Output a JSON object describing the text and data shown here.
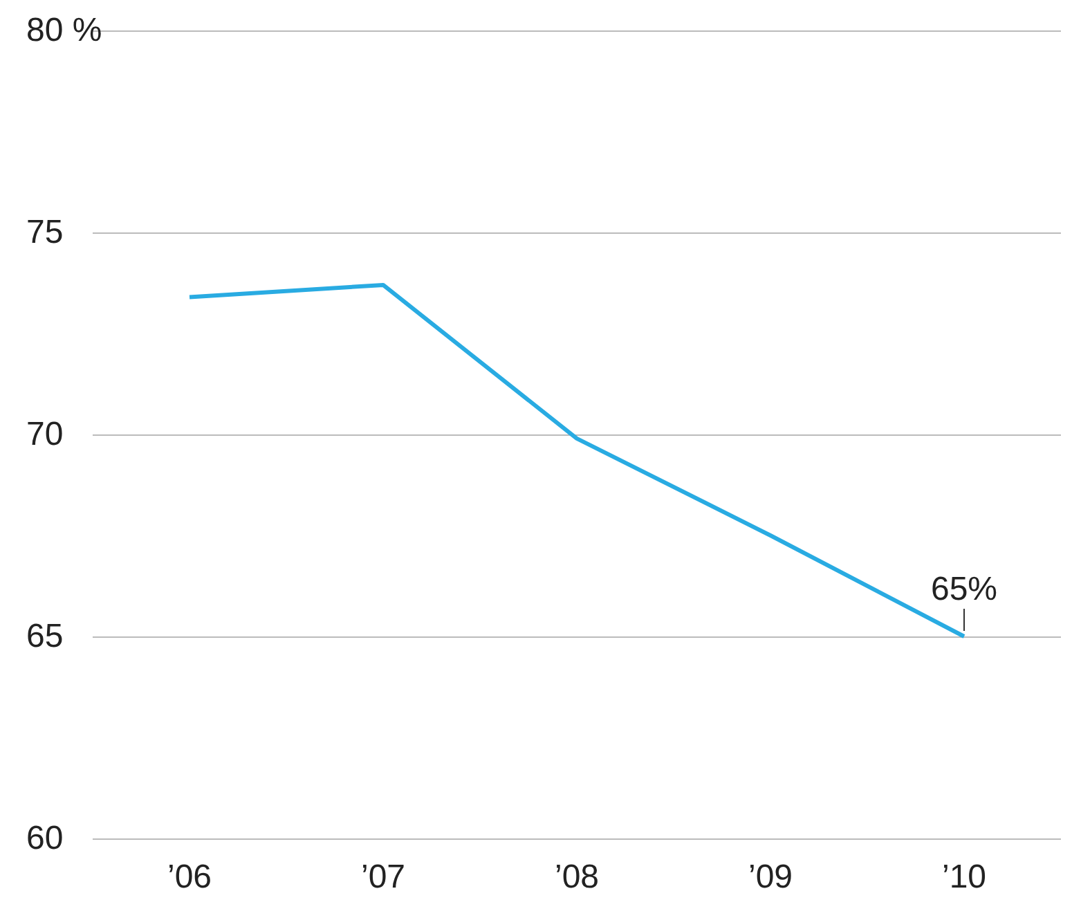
{
  "chart_data": {
    "type": "line",
    "categories": [
      "’06",
      "’07",
      "’08",
      "’09",
      "’10"
    ],
    "series": [
      {
        "color": "#29abe2",
        "values": [
          73.4,
          73.7,
          69.9,
          67.5,
          65
        ]
      }
    ],
    "ylim": [
      60,
      80
    ],
    "yticks": [
      60,
      65,
      70,
      75,
      {
        "value": 80,
        "label": "80 %"
      }
    ],
    "grid": "y",
    "line_style": "solid",
    "annotations": [
      {
        "text": "65%",
        "x": "’10",
        "y": 65
      }
    ]
  }
}
